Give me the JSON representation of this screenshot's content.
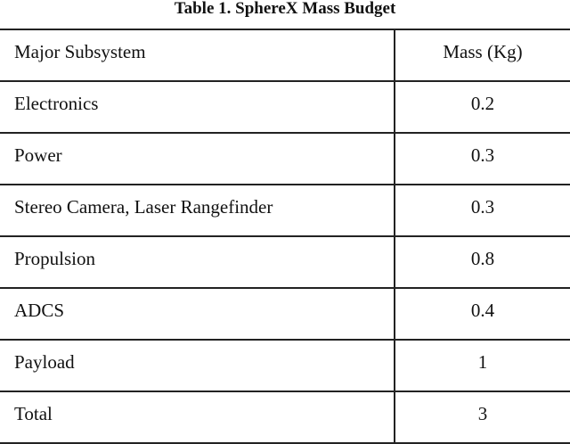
{
  "title": "Table 1. SphereX Mass Budget",
  "table": {
    "headers": [
      "Major Subsystem",
      "Mass (Kg)"
    ],
    "rows": [
      [
        "Electronics",
        "0.2"
      ],
      [
        "Power",
        "0.3"
      ],
      [
        "Stereo Camera, Laser Rangefinder",
        "0.3"
      ],
      [
        "Propulsion",
        "0.8"
      ],
      [
        "ADCS",
        "0.4"
      ],
      [
        "Payload",
        "1"
      ],
      [
        "Total",
        "3"
      ]
    ]
  }
}
